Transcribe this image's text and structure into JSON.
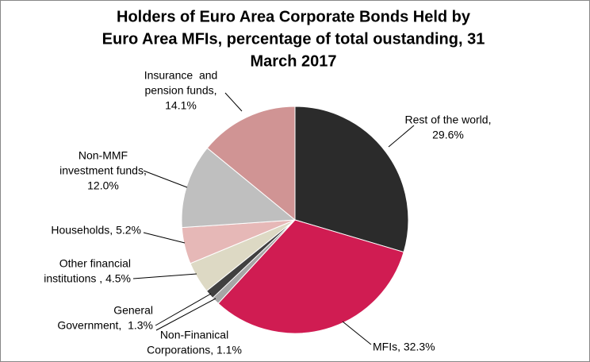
{
  "chart_data": {
    "type": "pie",
    "title": [
      "Holders of Euro Area Corporate Bonds Held by",
      "Euro Area MFIs, percentage of total oustanding, 31",
      "March 2017"
    ],
    "labels": [
      [
        "Rest of the world,",
        "29.6%"
      ],
      [
        "MFIs, 32.3%"
      ],
      [
        "Non-Finanical",
        "Corporations, 1.1%"
      ],
      [
        "General",
        "Government,  1.3%"
      ],
      [
        "Other financial",
        "institutions , 4.5%"
      ],
      [
        "Households, 5.2%"
      ],
      [
        "Non-MMF",
        "investment funds,",
        "12.0%"
      ],
      [
        "Insurance  and",
        "pension funds,",
        "14.1%"
      ]
    ],
    "values": [
      29.6,
      32.3,
      1.1,
      1.3,
      4.5,
      5.2,
      12.0,
      14.1
    ],
    "colors": [
      "#2b2b2b",
      "#d01c52",
      "#a6a6a6",
      "#404040",
      "#ddd9c4",
      "#e6b8b7",
      "#bfbfbf",
      "#d09494"
    ]
  }
}
